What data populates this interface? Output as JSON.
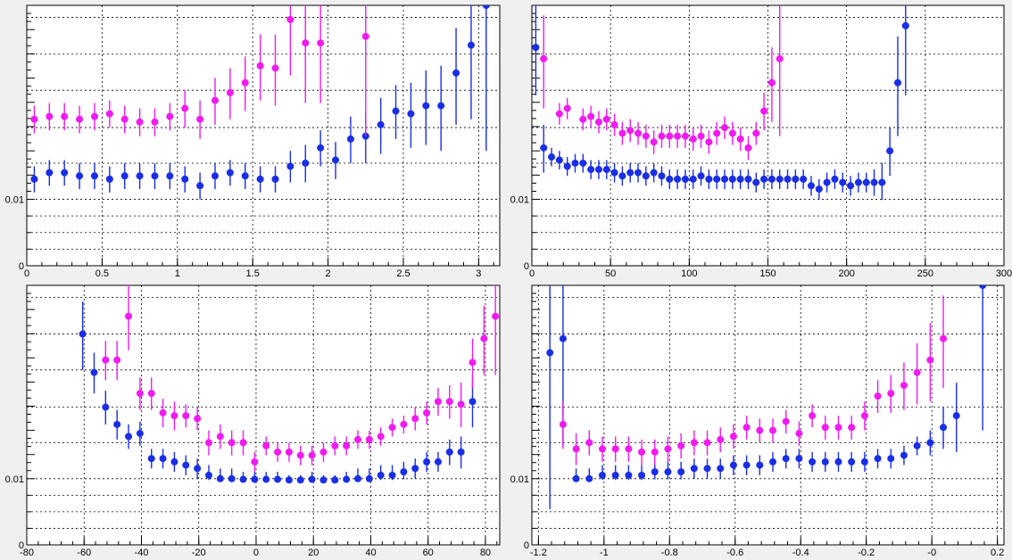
{
  "colors": {
    "blue": "#1a2ee6",
    "magenta": "#f01bf0",
    "background": "#f0f0f0",
    "frame": "#ffffff"
  },
  "chart_data": [
    {
      "type": "scatter",
      "title": "",
      "xlabel": "",
      "ylabel": "",
      "xlim": [
        0,
        3.14
      ],
      "ylim": [
        0,
        0.0175
      ],
      "y_scale": "log-like",
      "x_ticks": [
        0,
        0.5,
        1,
        1.5,
        2,
        2.5,
        3
      ],
      "x_tick_labels": [
        "0",
        "0.5",
        "1",
        "1.5",
        "2",
        "2.5",
        "3"
      ],
      "y_tick_labels": [
        {
          "value": 0,
          "label": "0"
        },
        {
          "value": 0.01,
          "label": "0.01"
        }
      ],
      "grid": true,
      "series": [
        {
          "color": "blue",
          "x": [
            0.05,
            0.15,
            0.25,
            0.35,
            0.45,
            0.55,
            0.65,
            0.75,
            0.85,
            0.95,
            1.05,
            1.15,
            1.25,
            1.35,
            1.45,
            1.55,
            1.65,
            1.75,
            1.85,
            1.95,
            2.05,
            2.15,
            2.25,
            2.35,
            2.45,
            2.55,
            2.65,
            2.75,
            2.85,
            2.95,
            3.05
          ],
          "y": [
            0.0106,
            0.0108,
            0.0108,
            0.0107,
            0.0107,
            0.0106,
            0.0107,
            0.0107,
            0.0107,
            0.0107,
            0.0106,
            0.0104,
            0.0107,
            0.0108,
            0.0107,
            0.0106,
            0.0106,
            0.011,
            0.0111,
            0.0116,
            0.0112,
            0.0119,
            0.012,
            0.0124,
            0.0129,
            0.0128,
            0.0131,
            0.0131,
            0.0144,
            0.0156,
            0.0175
          ],
          "err": [
            0.0004,
            0.0004,
            0.0004,
            0.0004,
            0.0004,
            0.0004,
            0.0004,
            0.0004,
            0.0004,
            0.0004,
            0.0004,
            0.0004,
            0.0004,
            0.0004,
            0.0004,
            0.0004,
            0.0004,
            0.0005,
            0.0006,
            0.0006,
            0.0006,
            0.0008,
            0.0009,
            0.001,
            0.001,
            0.0012,
            0.0014,
            0.0016,
            0.002,
            0.003,
            0.006
          ]
        },
        {
          "color": "magenta",
          "x": [
            0.05,
            0.15,
            0.25,
            0.35,
            0.45,
            0.55,
            0.65,
            0.75,
            0.85,
            0.95,
            1.05,
            1.15,
            1.25,
            1.35,
            1.45,
            1.55,
            1.65,
            1.75,
            1.85,
            1.95,
            2.25
          ],
          "y": [
            0.0126,
            0.0127,
            0.0127,
            0.0126,
            0.0127,
            0.0128,
            0.0126,
            0.0125,
            0.0125,
            0.0127,
            0.013,
            0.0126,
            0.0133,
            0.0136,
            0.014,
            0.0147,
            0.0146,
            0.0168,
            0.0157,
            0.0157,
            0.016
          ],
          "err": [
            0.0005,
            0.0005,
            0.0005,
            0.0005,
            0.0005,
            0.0005,
            0.0005,
            0.0005,
            0.0005,
            0.0005,
            0.0007,
            0.0007,
            0.0009,
            0.001,
            0.0011,
            0.0014,
            0.0015,
            0.0025,
            0.0025,
            0.0025,
            0.004
          ]
        }
      ]
    },
    {
      "type": "scatter",
      "title": "",
      "xlabel": "",
      "ylabel": "",
      "xlim": [
        0,
        300
      ],
      "ylim": [
        0,
        0.0175
      ],
      "y_scale": "log-like",
      "x_ticks": [
        0,
        50,
        100,
        150,
        200,
        250,
        300
      ],
      "x_tick_labels": [
        "0",
        "50",
        "100",
        "150",
        "200",
        "250",
        "300"
      ],
      "y_tick_labels": [
        {
          "value": 0,
          "label": "0"
        },
        {
          "value": 0.01,
          "label": "0.01"
        }
      ],
      "grid": true,
      "series": [
        {
          "color": "blue",
          "x": [
            2.5,
            7.5,
            12.5,
            17.5,
            22.5,
            27.5,
            32.5,
            37.5,
            42.5,
            47.5,
            52.5,
            57.5,
            62.5,
            67.5,
            72.5,
            77.5,
            82.5,
            87.5,
            92.5,
            97.5,
            102.5,
            107.5,
            112.5,
            117.5,
            122.5,
            127.5,
            132.5,
            137.5,
            142.5,
            147.5,
            152.5,
            157.5,
            162.5,
            167.5,
            172.5,
            177.5,
            182.5,
            187.5,
            192.5,
            197.5,
            202.5,
            207.5,
            212.5,
            217.5,
            222.5,
            227.5,
            232.5,
            237.5
          ],
          "y": [
            0.0155,
            0.0116,
            0.0113,
            0.0112,
            0.011,
            0.0111,
            0.0111,
            0.0109,
            0.0109,
            0.0109,
            0.0108,
            0.0107,
            0.0108,
            0.0108,
            0.0107,
            0.0108,
            0.0107,
            0.0106,
            0.0106,
            0.0106,
            0.0106,
            0.0107,
            0.0106,
            0.0106,
            0.0106,
            0.0106,
            0.0106,
            0.0106,
            0.0105,
            0.0106,
            0.0106,
            0.0106,
            0.0106,
            0.0106,
            0.0106,
            0.0104,
            0.0103,
            0.0105,
            0.0106,
            0.0105,
            0.0104,
            0.0105,
            0.0105,
            0.0105,
            0.0105,
            0.0115,
            0.014,
            0.0165
          ],
          "err": [
            0.002,
            0.0008,
            0.0003,
            0.0003,
            0.0003,
            0.0003,
            0.0003,
            0.0003,
            0.0003,
            0.0003,
            0.0003,
            0.0003,
            0.0003,
            0.0003,
            0.0003,
            0.0003,
            0.0003,
            0.0003,
            0.0003,
            0.0003,
            0.0003,
            0.0003,
            0.0003,
            0.0003,
            0.0003,
            0.0003,
            0.0003,
            0.0003,
            0.0003,
            0.0003,
            0.0003,
            0.0003,
            0.0003,
            0.0003,
            0.0003,
            0.0003,
            0.0003,
            0.0003,
            0.0003,
            0.0003,
            0.0003,
            0.0003,
            0.0003,
            0.0004,
            0.0006,
            0.0008,
            0.002,
            0.003
          ]
        },
        {
          "color": "magenta",
          "x": [
            7.5,
            17.5,
            22.5,
            32.5,
            37.5,
            42.5,
            47.5,
            52.5,
            57.5,
            62.5,
            67.5,
            72.5,
            77.5,
            82.5,
            87.5,
            92.5,
            97.5,
            102.5,
            107.5,
            112.5,
            117.5,
            122.5,
            127.5,
            132.5,
            137.5,
            142.5,
            147.5,
            152.5,
            157.5
          ],
          "y": [
            0.015,
            0.0128,
            0.013,
            0.0126,
            0.0127,
            0.0125,
            0.0126,
            0.0124,
            0.0121,
            0.0122,
            0.0121,
            0.012,
            0.0118,
            0.012,
            0.012,
            0.012,
            0.012,
            0.0119,
            0.012,
            0.0118,
            0.0121,
            0.0123,
            0.0121,
            0.0119,
            0.0116,
            0.0121,
            0.0129,
            0.014,
            0.015
          ],
          "err": [
            0.002,
            0.0004,
            0.0004,
            0.0004,
            0.0004,
            0.0004,
            0.0004,
            0.0004,
            0.0004,
            0.0004,
            0.0004,
            0.0004,
            0.0004,
            0.0004,
            0.0004,
            0.0004,
            0.0004,
            0.0004,
            0.0004,
            0.0004,
            0.0004,
            0.0004,
            0.0004,
            0.0004,
            0.0004,
            0.0004,
            0.0007,
            0.0015,
            0.003
          ]
        }
      ]
    },
    {
      "type": "scatter",
      "title": "",
      "xlabel": "",
      "ylabel": "",
      "xlim": [
        -80,
        85
      ],
      "ylim": [
        0,
        0.0175
      ],
      "y_scale": "log-like",
      "x_ticks": [
        -80,
        -60,
        -40,
        -20,
        0,
        20,
        40,
        60,
        80
      ],
      "x_tick_labels": [
        "-80",
        "-60",
        "-40",
        "-20",
        "0",
        "20",
        "40",
        "60",
        "80"
      ],
      "y_tick_labels": [
        {
          "value": 0,
          "label": "0"
        },
        {
          "value": 0.01,
          "label": "0.01"
        }
      ],
      "grid": true,
      "series": [
        {
          "color": "blue",
          "x": [
            -60.5,
            -56.5,
            -52.5,
            -48.5,
            -44.5,
            -40.5,
            -36.5,
            -32.5,
            -28.5,
            -24.5,
            -20.5,
            -16.5,
            -12.5,
            -8.5,
            -4.5,
            -0.5,
            3.5,
            7.5,
            11.5,
            15.5,
            19.5,
            23.5,
            27.5,
            31.5,
            35.5,
            39.5,
            43.5,
            47.5,
            51.5,
            55.5,
            59.5,
            63.5,
            67.5,
            71.5,
            75.5
          ],
          "y": [
            0.0152,
            0.0136,
            0.0123,
            0.0117,
            0.0113,
            0.0114,
            0.0106,
            0.0106,
            0.0105,
            0.0104,
            0.0103,
            0.0101,
            0.01,
            0.01,
            0.0099,
            0.0099,
            0.0099,
            0.0099,
            0.0098,
            0.0098,
            0.0099,
            0.0098,
            0.0098,
            0.0099,
            0.01,
            0.01,
            0.0101,
            0.0101,
            0.0102,
            0.0103,
            0.0105,
            0.0105,
            0.0108,
            0.0108,
            0.0125
          ],
          "err": [
            0.0015,
            0.0008,
            0.0006,
            0.0005,
            0.0004,
            0.0004,
            0.0003,
            0.0003,
            0.0003,
            0.0003,
            0.0003,
            0.0003,
            0.0003,
            0.0003,
            0.0003,
            0.0003,
            0.0003,
            0.0003,
            0.0003,
            0.0003,
            0.0003,
            0.0003,
            0.0003,
            0.0003,
            0.0003,
            0.0003,
            0.0003,
            0.0003,
            0.0003,
            0.0003,
            0.0003,
            0.0003,
            0.0004,
            0.0005,
            0.0009
          ]
        },
        {
          "color": "magenta",
          "x": [
            -52.5,
            -48.5,
            -44.5,
            -40.5,
            -36.5,
            -32.5,
            -28.5,
            -24.5,
            -20.5,
            -16.5,
            -12.5,
            -8.5,
            -4.5,
            -0.5,
            3.5,
            7.5,
            11.5,
            15.5,
            19.5,
            23.5,
            27.5,
            31.5,
            35.5,
            39.5,
            43.5,
            47.5,
            51.5,
            55.5,
            59.5,
            63.5,
            67.5,
            71.5,
            75.5,
            79.5,
            83.5
          ],
          "y": [
            0.0141,
            0.0141,
            0.016,
            0.0128,
            0.0128,
            0.0121,
            0.012,
            0.012,
            0.0119,
            0.0111,
            0.0113,
            0.0111,
            0.0111,
            0.0105,
            0.011,
            0.0108,
            0.0108,
            0.0107,
            0.0107,
            0.0108,
            0.011,
            0.011,
            0.0112,
            0.0112,
            0.0113,
            0.0116,
            0.0117,
            0.0119,
            0.0121,
            0.0125,
            0.0125,
            0.0124,
            0.014,
            0.015,
            0.016
          ],
          "err": [
            0.0008,
            0.0008,
            0.0015,
            0.0006,
            0.0006,
            0.0005,
            0.0005,
            0.0004,
            0.0004,
            0.0004,
            0.0004,
            0.0004,
            0.0004,
            0.0003,
            0.0003,
            0.0003,
            0.0003,
            0.0003,
            0.0003,
            0.0003,
            0.0003,
            0.0003,
            0.0003,
            0.0003,
            0.0003,
            0.0003,
            0.0003,
            0.0004,
            0.0004,
            0.0005,
            0.0006,
            0.0008,
            0.001,
            0.0015,
            0.0025
          ]
        }
      ]
    },
    {
      "type": "scatter",
      "title": "",
      "xlabel": "",
      "ylabel": "",
      "xlim": [
        -1.22,
        0.22
      ],
      "ylim": [
        0,
        0.0175
      ],
      "y_scale": "log-like",
      "x_ticks": [
        -1.2,
        -1,
        -0.8,
        -0.6,
        -0.4,
        -0.2,
        0,
        0.2
      ],
      "x_tick_labels": [
        "-1.2",
        "-1",
        "-0.8",
        "-0.6",
        "-0.4",
        "-0.2",
        "-0",
        "0.2"
      ],
      "y_tick_labels": [
        {
          "value": 0,
          "label": "0"
        },
        {
          "value": 0.01,
          "label": "0.01"
        }
      ],
      "grid": true,
      "series": [
        {
          "color": "blue",
          "x": [
            -1.165,
            -1.125,
            -1.085,
            -1.045,
            -1.005,
            -0.965,
            -0.925,
            -0.885,
            -0.845,
            -0.805,
            -0.765,
            -0.725,
            -0.685,
            -0.645,
            -0.605,
            -0.565,
            -0.525,
            -0.485,
            -0.445,
            -0.405,
            -0.365,
            -0.325,
            -0.285,
            -0.245,
            -0.205,
            -0.165,
            -0.125,
            -0.085,
            -0.045,
            -0.005,
            0.035,
            0.075,
            0.155
          ],
          "y": [
            0.0144,
            0.015,
            0.01,
            0.01,
            0.0101,
            0.0101,
            0.0101,
            0.0101,
            0.0102,
            0.0102,
            0.0102,
            0.0103,
            0.0103,
            0.0103,
            0.0104,
            0.0104,
            0.0104,
            0.0105,
            0.0106,
            0.0106,
            0.0105,
            0.0105,
            0.0105,
            0.0105,
            0.0105,
            0.0106,
            0.0106,
            0.0107,
            0.011,
            0.0111,
            0.0116,
            0.012,
            0.0175
          ],
          "err": [
            0.009,
            0.004,
            0.0003,
            0.0003,
            0.0003,
            0.0003,
            0.0003,
            0.0003,
            0.0003,
            0.0003,
            0.0003,
            0.0003,
            0.0003,
            0.0003,
            0.0003,
            0.0003,
            0.0003,
            0.0003,
            0.0003,
            0.0003,
            0.0003,
            0.0003,
            0.0003,
            0.0003,
            0.0003,
            0.0003,
            0.0003,
            0.0003,
            0.0003,
            0.0004,
            0.0007,
            0.0012,
            0.006
          ]
        },
        {
          "color": "magenta",
          "x": [
            -1.125,
            -1.085,
            -1.045,
            -1.005,
            -0.965,
            -0.925,
            -0.885,
            -0.845,
            -0.805,
            -0.765,
            -0.725,
            -0.685,
            -0.645,
            -0.605,
            -0.565,
            -0.525,
            -0.485,
            -0.445,
            -0.405,
            -0.365,
            -0.325,
            -0.285,
            -0.245,
            -0.205,
            -0.165,
            -0.125,
            -0.085,
            -0.045,
            -0.005,
            0.035
          ],
          "y": [
            0.0117,
            0.0109,
            0.0111,
            0.0109,
            0.0109,
            0.0109,
            0.0108,
            0.0108,
            0.0109,
            0.011,
            0.0111,
            0.0111,
            0.0112,
            0.0113,
            0.0116,
            0.0115,
            0.0115,
            0.0118,
            0.0114,
            0.012,
            0.0116,
            0.0116,
            0.0116,
            0.012,
            0.0127,
            0.0128,
            0.0131,
            0.0136,
            0.0141,
            0.015
          ],
          "err": [
            0.0008,
            0.0005,
            0.0004,
            0.0004,
            0.0004,
            0.0004,
            0.0004,
            0.0004,
            0.0004,
            0.0004,
            0.0004,
            0.0004,
            0.0004,
            0.0004,
            0.0004,
            0.0004,
            0.0004,
            0.0004,
            0.0004,
            0.0004,
            0.0004,
            0.0004,
            0.0004,
            0.0005,
            0.0006,
            0.0007,
            0.0009,
            0.0012,
            0.0016,
            0.002
          ]
        }
      ]
    }
  ]
}
